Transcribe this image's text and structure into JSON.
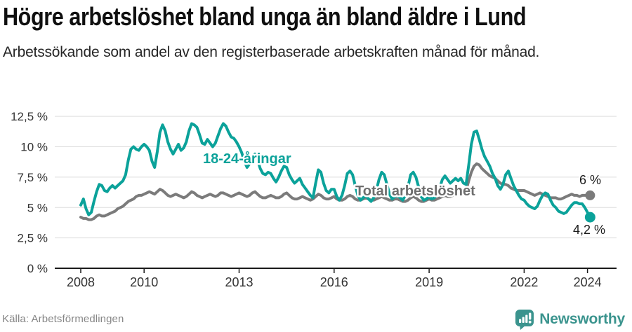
{
  "footer": {
    "source": "Källa: Arbetsförmedlingen",
    "brand": "Newsworthy",
    "brand_icon": "newsworthy-chart-bubble-icon",
    "brand_color": "#3b948e"
  },
  "colors": {
    "youth_line": "#0ba29a",
    "total_line": "#7b7b7b",
    "total_label": "#6e6e6e",
    "grid": "#dedede",
    "axis": "#1a1a1a",
    "tick_text": "#333333"
  },
  "chart_data": {
    "type": "line",
    "title": "Högre arbetslöshet bland unga än bland äldre i Lund",
    "subtitle": "Arbetssökande som andel av den registerbaserade arbetskraften månad för månad.",
    "frequency": "monthly",
    "x_start": "2008-01",
    "x_end": "2024-02",
    "x_tick_years": [
      2008,
      2010,
      2013,
      2016,
      2019,
      2022,
      2024
    ],
    "x_tick_labels": [
      "2008",
      "2010",
      "2013",
      "2016",
      "2019",
      "2022",
      "2024"
    ],
    "y_ticks": [
      0,
      2.5,
      5,
      7.5,
      10,
      12.5
    ],
    "y_tick_labels": [
      "0 %",
      "2,5 %",
      "5 %",
      "7,5 %",
      "10 %",
      "12,5 %"
    ],
    "ylim": [
      0,
      13.3
    ],
    "unit": "%",
    "grid": true,
    "series": [
      {
        "id": "total",
        "name": "Total arbetslöshet",
        "color": "#7b7b7b",
        "label_color": "#6e6e6e",
        "end_label": "6 %",
        "end_value": 6.0,
        "values": [
          4.2,
          4.1,
          4.1,
          4.0,
          4.0,
          4.1,
          4.3,
          4.4,
          4.3,
          4.3,
          4.4,
          4.5,
          4.6,
          4.7,
          4.9,
          5.0,
          5.1,
          5.3,
          5.5,
          5.6,
          5.7,
          5.9,
          6.0,
          6.0,
          6.1,
          6.2,
          6.3,
          6.2,
          6.1,
          6.3,
          6.5,
          6.4,
          6.2,
          6.0,
          5.9,
          6.0,
          6.1,
          6.0,
          5.9,
          5.8,
          5.9,
          6.1,
          6.3,
          6.2,
          6.0,
          5.9,
          5.8,
          5.9,
          6.0,
          6.1,
          6.0,
          5.9,
          6.0,
          6.2,
          6.2,
          6.1,
          6.0,
          5.9,
          6.0,
          6.1,
          6.2,
          6.1,
          6.0,
          5.9,
          6.0,
          6.2,
          6.3,
          6.1,
          5.9,
          5.8,
          5.8,
          5.9,
          6.0,
          5.9,
          5.8,
          5.8,
          5.9,
          6.1,
          6.2,
          6.0,
          5.8,
          5.7,
          5.7,
          5.8,
          5.9,
          5.8,
          5.7,
          5.6,
          5.7,
          5.9,
          6.1,
          6.0,
          5.8,
          5.7,
          5.7,
          5.8,
          5.9,
          5.7,
          5.6,
          5.6,
          5.7,
          5.9,
          6.0,
          5.9,
          5.7,
          5.6,
          5.6,
          5.7,
          5.8,
          5.7,
          5.6,
          5.6,
          5.7,
          5.8,
          5.9,
          5.8,
          5.7,
          5.6,
          5.6,
          5.7,
          5.7,
          5.6,
          5.5,
          5.5,
          5.6,
          5.8,
          5.9,
          5.8,
          5.6,
          5.5,
          5.5,
          5.6,
          5.7,
          5.6,
          5.6,
          5.7,
          5.8,
          5.9,
          6.0,
          5.9,
          5.9,
          6.0,
          6.1,
          6.1,
          6.2,
          6.2,
          6.4,
          7.2,
          7.9,
          8.4,
          8.6,
          8.5,
          8.2,
          8.0,
          7.8,
          7.6,
          7.5,
          7.4,
          7.2,
          7.0,
          6.9,
          6.9,
          6.8,
          6.6,
          6.5,
          6.4,
          6.4,
          6.4,
          6.4,
          6.3,
          6.2,
          6.1,
          6.0,
          6.1,
          6.2,
          6.1,
          6.0,
          5.9,
          5.8,
          5.8,
          5.8,
          5.7,
          5.7,
          5.8,
          5.9,
          6.0,
          6.1,
          6.0,
          6.0,
          5.9,
          6.0,
          6.0,
          6.0,
          6.0
        ]
      },
      {
        "id": "youth",
        "name": "18-24-åringar",
        "color": "#0ba29a",
        "label_color": "#0ba29a",
        "end_label": "4,2 %",
        "end_value": 4.2,
        "values": [
          5.2,
          5.7,
          4.9,
          4.4,
          4.6,
          5.5,
          6.3,
          6.9,
          6.8,
          6.4,
          6.3,
          6.6,
          6.8,
          6.6,
          6.8,
          7.0,
          7.2,
          7.7,
          8.9,
          9.8,
          10.0,
          9.8,
          9.7,
          10.0,
          10.2,
          10.0,
          9.7,
          8.8,
          8.3,
          9.6,
          11.2,
          11.8,
          11.3,
          10.4,
          9.8,
          9.4,
          9.8,
          10.2,
          9.7,
          9.9,
          10.4,
          11.3,
          11.9,
          11.8,
          11.6,
          11.0,
          10.3,
          10.2,
          10.6,
          10.3,
          10.0,
          10.3,
          10.9,
          11.5,
          11.9,
          11.7,
          11.2,
          10.8,
          10.7,
          10.4,
          10.0,
          9.5,
          8.8,
          8.3,
          8.6,
          9.2,
          9.4,
          8.9,
          8.2,
          7.8,
          7.7,
          7.9,
          7.8,
          7.4,
          7.1,
          7.5,
          8.0,
          8.4,
          8.3,
          7.7,
          7.3,
          7.0,
          7.2,
          7.4,
          6.9,
          6.6,
          6.3,
          6.0,
          5.8,
          7.0,
          8.1,
          7.9,
          7.0,
          6.4,
          6.2,
          6.5,
          6.5,
          5.9,
          5.6,
          6.0,
          6.8,
          7.8,
          8.0,
          7.7,
          6.8,
          6.0,
          5.6,
          5.8,
          6.0,
          5.7,
          5.5,
          5.8,
          6.4,
          7.3,
          7.9,
          7.7,
          6.9,
          6.1,
          5.7,
          5.9,
          6.0,
          5.8,
          5.6,
          6.0,
          6.7,
          7.7,
          7.9,
          7.5,
          6.7,
          5.9,
          5.6,
          5.7,
          5.9,
          5.7,
          5.8,
          6.1,
          6.6,
          7.3,
          7.6,
          7.3,
          7.0,
          7.2,
          7.4,
          7.2,
          7.4,
          7.0,
          6.9,
          8.5,
          10.2,
          11.2,
          11.3,
          10.6,
          9.8,
          9.2,
          8.8,
          8.4,
          7.8,
          7.4,
          6.8,
          6.5,
          6.9,
          7.7,
          8.0,
          7.4,
          6.8,
          6.4,
          6.0,
          5.7,
          5.6,
          5.3,
          5.1,
          5.0,
          4.9,
          5.1,
          5.6,
          6.0,
          6.2,
          6.1,
          5.6,
          5.2,
          5.0,
          4.7,
          4.6,
          4.5,
          4.6,
          4.9,
          5.2,
          5.4,
          5.4,
          5.3,
          5.3,
          5.0,
          4.6,
          4.2
        ]
      }
    ]
  }
}
